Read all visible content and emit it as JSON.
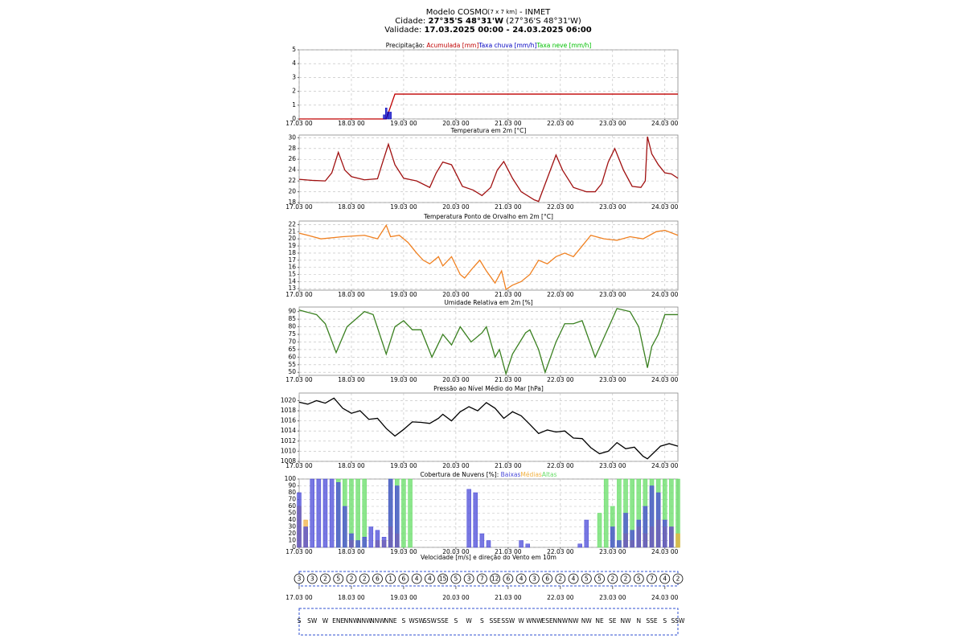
{
  "header": {
    "model": "Modelo COSMO",
    "resolution": "[7 x 7 km]",
    "source": " - INMET",
    "city_label": "Cidade: ",
    "city": "27°35'S 48°31'W",
    "city_alt": " (27°36'S 48°31'W)",
    "validity_label": "Validade: ",
    "validity": "17.03.2025 00:00 - 24.03.2025 06:00"
  },
  "chart_data": [
    {
      "type": "combo",
      "title": "Precipitação: ",
      "xlim": [
        0,
        174
      ],
      "ylim": [
        0,
        5
      ],
      "yticks": [
        0,
        1,
        2,
        3,
        4,
        5
      ],
      "grid": true,
      "xticks": [
        {
          "value": 0,
          "label": "17.03 00"
        },
        {
          "value": 24,
          "label": "18.03 00"
        },
        {
          "value": 48,
          "label": "19.03 00"
        },
        {
          "value": 72,
          "label": "20.03 00"
        },
        {
          "value": 96,
          "label": "21.03 00"
        },
        {
          "value": 120,
          "label": "22.03 00"
        },
        {
          "value": 144,
          "label": "23.03 00"
        },
        {
          "value": 168,
          "label": "24.03 00"
        }
      ],
      "series": [
        {
          "name": "Acumulada [mm]",
          "color": "#c00000",
          "style": "line",
          "x": [
            0,
            40,
            44,
            174
          ],
          "values": [
            0,
            0,
            1.8,
            1.8
          ]
        },
        {
          "name": "Taxa chuva [mm/h]",
          "color": "#0000c0",
          "style": "bar",
          "x": [
            39,
            40,
            41,
            42
          ],
          "values": [
            0.3,
            0.8,
            0.5,
            0.5
          ]
        },
        {
          "name": "Taxa neve [mm/h]",
          "color": "#00c000",
          "style": "bar",
          "x": [],
          "values": []
        }
      ]
    },
    {
      "type": "line",
      "title": "Temperatura em 2m [°C]",
      "xlim": [
        0,
        174
      ],
      "ylim": [
        18,
        30.5
      ],
      "yticks": [
        18,
        20,
        22,
        24,
        26,
        28,
        30
      ],
      "grid": true,
      "xticks": [
        {
          "value": 0,
          "label": "17.03 00"
        },
        {
          "value": 24,
          "label": "18.03 00"
        },
        {
          "value": 48,
          "label": "19.03 00"
        },
        {
          "value": 72,
          "label": "20.03 00"
        },
        {
          "value": 96,
          "label": "21.03 00"
        },
        {
          "value": 120,
          "label": "22.03 00"
        },
        {
          "value": 144,
          "label": "23.03 00"
        },
        {
          "value": 168,
          "label": "24.03 00"
        }
      ],
      "series": [
        {
          "color": "#a01010",
          "x": [
            0,
            6,
            12,
            15,
            18,
            21,
            24,
            30,
            36,
            38,
            41,
            44,
            48,
            54,
            60,
            63,
            66,
            70,
            75,
            80,
            84,
            88,
            91,
            94,
            98,
            102,
            108,
            110,
            114,
            118,
            121,
            126,
            132,
            136,
            139,
            142,
            145,
            149,
            153,
            157,
            159,
            160,
            162,
            165,
            168,
            171,
            174
          ],
          "values": [
            22.3,
            22.1,
            22,
            23.5,
            27.3,
            24,
            22.8,
            22.2,
            22.4,
            25,
            28.8,
            25,
            22.5,
            22,
            20.8,
            23.5,
            25.5,
            25,
            21,
            20.3,
            19.3,
            20.8,
            24,
            25.6,
            22.5,
            20,
            18.5,
            18.2,
            22.5,
            26.8,
            24,
            20.8,
            20,
            20,
            21.5,
            25.5,
            28,
            24,
            21,
            20.8,
            22,
            30.2,
            27,
            25,
            23.5,
            23.3,
            22.5
          ]
        }
      ]
    },
    {
      "type": "line",
      "title": "Temperatura Ponto de Orvalho em 2m [°C]",
      "xlim": [
        0,
        174
      ],
      "ylim": [
        12.8,
        22.5
      ],
      "yticks": [
        13,
        14,
        15,
        16,
        17,
        18,
        19,
        20,
        21,
        22
      ],
      "grid": true,
      "xticks": [
        {
          "value": 0,
          "label": "17.03 00"
        },
        {
          "value": 24,
          "label": "18.03 00"
        },
        {
          "value": 48,
          "label": "19.03 00"
        },
        {
          "value": 72,
          "label": "20.03 00"
        },
        {
          "value": 96,
          "label": "21.03 00"
        },
        {
          "value": 120,
          "label": "22.03 00"
        },
        {
          "value": 144,
          "label": "23.03 00"
        },
        {
          "value": 168,
          "label": "24.03 00"
        }
      ],
      "series": [
        {
          "color": "#f08020",
          "x": [
            0,
            4,
            10,
            20,
            30,
            36,
            40,
            42,
            46,
            50,
            54,
            57,
            60,
            64,
            66,
            70,
            74,
            76,
            80,
            83,
            86,
            90,
            93,
            95,
            98,
            102,
            106,
            110,
            114,
            118,
            122,
            126,
            130,
            134,
            140,
            146,
            152,
            158,
            164,
            168,
            174
          ],
          "values": [
            20.8,
            20.5,
            20,
            20.3,
            20.5,
            20,
            21.9,
            20.3,
            20.5,
            19.5,
            18,
            17,
            16.5,
            17.5,
            16.2,
            17.5,
            15,
            14.5,
            16,
            17,
            15.5,
            13.8,
            15.5,
            12.9,
            13.5,
            14,
            15,
            17,
            16.5,
            17.5,
            18,
            17.5,
            19,
            20.5,
            20,
            19.8,
            20.3,
            20,
            21,
            21.2,
            20.5
          ]
        }
      ]
    },
    {
      "type": "line",
      "title": "Umidade Relativa em 2m [%]",
      "xlim": [
        0,
        174
      ],
      "ylim": [
        48,
        93
      ],
      "yticks": [
        50,
        55,
        60,
        65,
        70,
        75,
        80,
        85,
        90
      ],
      "grid": true,
      "xticks": [
        {
          "value": 0,
          "label": "17.03 00"
        },
        {
          "value": 24,
          "label": "18.03 00"
        },
        {
          "value": 48,
          "label": "19.03 00"
        },
        {
          "value": 72,
          "label": "20.03 00"
        },
        {
          "value": 96,
          "label": "21.03 00"
        },
        {
          "value": 120,
          "label": "22.03 00"
        },
        {
          "value": 144,
          "label": "23.03 00"
        },
        {
          "value": 168,
          "label": "24.03 00"
        }
      ],
      "series": [
        {
          "color": "#3a8020",
          "x": [
            0,
            8,
            12,
            17,
            22,
            26,
            30,
            34,
            40,
            44,
            48,
            52,
            56,
            61,
            66,
            70,
            74,
            79,
            84,
            86,
            90,
            92,
            95,
            98,
            104,
            106,
            110,
            113,
            118,
            122,
            126,
            130,
            136,
            141,
            146,
            152,
            156,
            160,
            162,
            165,
            168,
            174
          ],
          "values": [
            91,
            88,
            82,
            63,
            80,
            85,
            90,
            88,
            62,
            80,
            84,
            78,
            78,
            60,
            75,
            68,
            80,
            70,
            76,
            80,
            60,
            65,
            49,
            62,
            76,
            78,
            65,
            50,
            70,
            82,
            82,
            84,
            60,
            76,
            92,
            90,
            80,
            53,
            67,
            75,
            88,
            88
          ]
        }
      ]
    },
    {
      "type": "line",
      "title": "Pressão ao Nível Médio do Mar [hPa]",
      "xlim": [
        0,
        174
      ],
      "ylim": [
        1008,
        1021.5
      ],
      "yticks": [
        1008,
        1010,
        1012,
        1014,
        1016,
        1018,
        1020
      ],
      "grid": true,
      "xticks": [
        {
          "value": 0,
          "label": "17.03 00"
        },
        {
          "value": 24,
          "label": "18.03 00"
        },
        {
          "value": 48,
          "label": "19.03 00"
        },
        {
          "value": 72,
          "label": "20.03 00"
        },
        {
          "value": 96,
          "label": "21.03 00"
        },
        {
          "value": 120,
          "label": "22.03 00"
        },
        {
          "value": 144,
          "label": "23.03 00"
        },
        {
          "value": 168,
          "label": "24.03 00"
        }
      ],
      "series": [
        {
          "color": "#000000",
          "x": [
            0,
            4,
            8,
            12,
            16,
            20,
            24,
            28,
            32,
            36,
            40,
            44,
            48,
            52,
            56,
            60,
            64,
            66,
            70,
            74,
            78,
            82,
            86,
            90,
            94,
            98,
            102,
            106,
            110,
            114,
            118,
            122,
            126,
            130,
            134,
            138,
            142,
            146,
            150,
            154,
            158,
            160,
            166,
            170,
            174
          ],
          "values": [
            1019.7,
            1019.3,
            1020,
            1019.5,
            1020.5,
            1018.5,
            1017.5,
            1018,
            1016.3,
            1016.5,
            1014.5,
            1013,
            1014.3,
            1015.8,
            1015.7,
            1015.5,
            1016.5,
            1017.3,
            1016,
            1017.8,
            1018.8,
            1018,
            1019.6,
            1018.5,
            1016.5,
            1017.8,
            1017,
            1015.3,
            1013.5,
            1014.2,
            1013.8,
            1014,
            1012.6,
            1012.5,
            1010.7,
            1009.5,
            1010,
            1011.7,
            1010.5,
            1010.8,
            1009,
            1008.5,
            1011,
            1011.5,
            1011
          ]
        }
      ]
    },
    {
      "type": "bar",
      "title": "Cobertura de Nuvens [%]: ",
      "xlim": [
        0,
        174
      ],
      "ylim": [
        0,
        100
      ],
      "yticks": [
        0,
        10,
        20,
        30,
        40,
        50,
        60,
        70,
        80,
        90,
        100
      ],
      "grid": true,
      "xticks": [
        {
          "value": 0,
          "label": "17.03 00"
        },
        {
          "value": 24,
          "label": "18.03 00"
        },
        {
          "value": 48,
          "label": "19.03 00"
        },
        {
          "value": 72,
          "label": "20.03 00"
        },
        {
          "value": 96,
          "label": "21.03 00"
        },
        {
          "value": 120,
          "label": "22.03 00"
        },
        {
          "value": 144,
          "label": "23.03 00"
        },
        {
          "value": 168,
          "label": "24.03 00"
        }
      ],
      "x": [
        0,
        3,
        6,
        9,
        12,
        15,
        18,
        21,
        24,
        27,
        30,
        33,
        36,
        39,
        42,
        45,
        48,
        51,
        54,
        57,
        60,
        63,
        66,
        69,
        72,
        75,
        78,
        81,
        84,
        87,
        90,
        93,
        96,
        99,
        102,
        105,
        108,
        111,
        114,
        117,
        120,
        123,
        126,
        129,
        132,
        135,
        138,
        141,
        144,
        147,
        150,
        153,
        156,
        159,
        162,
        165,
        168,
        171,
        174
      ],
      "series": [
        {
          "name": "Altas",
          "color": "#66dd66",
          "values": [
            0,
            0,
            0,
            0,
            0,
            0,
            100,
            100,
            100,
            100,
            100,
            0,
            0,
            0,
            100,
            100,
            100,
            100,
            0,
            0,
            0,
            0,
            0,
            0,
            0,
            0,
            0,
            0,
            0,
            0,
            0,
            0,
            0,
            0,
            0,
            0,
            0,
            0,
            0,
            0,
            0,
            0,
            0,
            0,
            0,
            0,
            50,
            100,
            60,
            100,
            100,
            100,
            100,
            100,
            100,
            100,
            100,
            100,
            100
          ]
        },
        {
          "name": "Médias",
          "color": "#f0b040",
          "values": [
            60,
            40,
            0,
            0,
            0,
            0,
            0,
            0,
            10,
            0,
            0,
            0,
            10,
            10,
            30,
            20,
            0,
            0,
            0,
            0,
            0,
            0,
            0,
            0,
            0,
            0,
            0,
            0,
            0,
            0,
            0,
            0,
            0,
            0,
            0,
            0,
            0,
            0,
            0,
            0,
            0,
            0,
            0,
            0,
            0,
            0,
            0,
            0,
            0,
            0,
            20,
            10,
            30,
            20,
            30,
            40,
            30,
            30,
            20
          ]
        },
        {
          "name": "Baixas",
          "color": "#4a4ad8",
          "values": [
            80,
            30,
            100,
            100,
            100,
            100,
            95,
            60,
            20,
            10,
            15,
            30,
            25,
            15,
            100,
            90,
            0,
            0,
            0,
            0,
            0,
            0,
            0,
            0,
            0,
            0,
            85,
            80,
            20,
            10,
            0,
            0,
            0,
            0,
            10,
            5,
            0,
            0,
            0,
            0,
            0,
            0,
            0,
            5,
            40,
            0,
            0,
            0,
            30,
            10,
            50,
            25,
            40,
            60,
            90,
            80,
            40,
            30,
            0
          ]
        }
      ]
    },
    {
      "type": "wind",
      "title": "Velocidade [m/s] e direção do Vento em 10m",
      "xlim": [
        0,
        174
      ],
      "xticks": [
        {
          "value": 0,
          "label": "17.03 00"
        },
        {
          "value": 24,
          "label": "18.03 00"
        },
        {
          "value": 48,
          "label": "19.03 00"
        },
        {
          "value": 72,
          "label": "20.03 00"
        },
        {
          "value": 96,
          "label": "21.03 00"
        },
        {
          "value": 120,
          "label": "22.03 00"
        },
        {
          "value": 144,
          "label": "23.03 00"
        },
        {
          "value": 168,
          "label": "24.03 00"
        }
      ],
      "x": [
        0,
        6,
        12,
        18,
        24,
        30,
        36,
        42,
        48,
        54,
        60,
        66,
        72,
        78,
        84,
        90,
        96,
        102,
        108,
        114,
        120,
        126,
        132,
        138,
        144,
        150,
        156,
        162,
        168,
        174
      ],
      "values": [
        3,
        3,
        2,
        5,
        2,
        2,
        6,
        1,
        6,
        4,
        4,
        15,
        5,
        3,
        7,
        12,
        6,
        4,
        3,
        6,
        2,
        4,
        5,
        5,
        2,
        2,
        5,
        7,
        4,
        2
      ],
      "directions": [
        "S",
        "SW",
        "W",
        "ENE",
        "NNW",
        "NNW",
        "NNW",
        "NNE",
        "S",
        "WSW",
        "SSW",
        "SSE",
        "S",
        "W",
        "S",
        "SSE",
        "SSW",
        "W",
        "WNW",
        "ESE",
        "NNW",
        "NW",
        "NW",
        "NE",
        "SE",
        "NW",
        "N",
        "SSE",
        "S",
        "SSW"
      ]
    }
  ]
}
